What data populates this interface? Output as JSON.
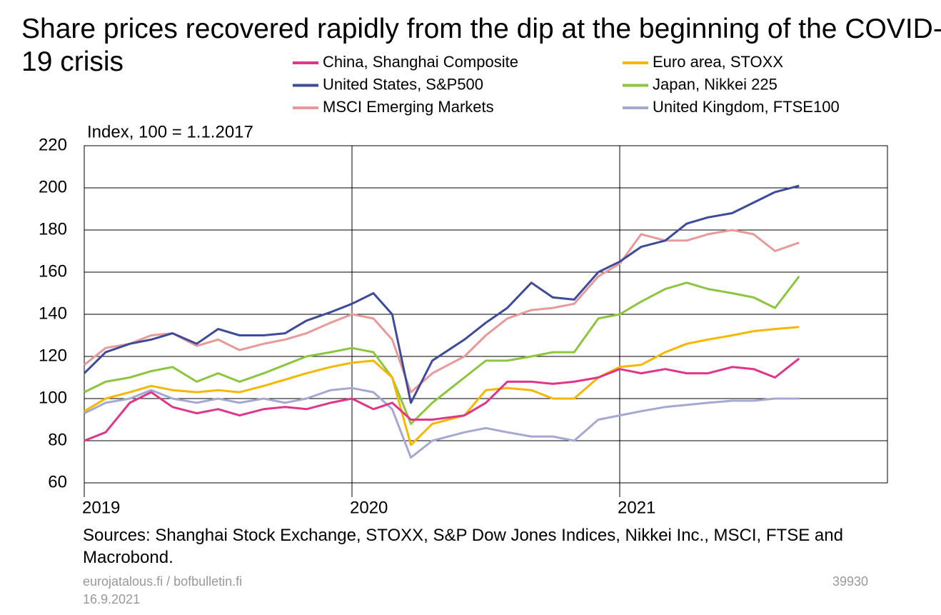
{
  "chart_data": {
    "type": "line",
    "title": "Share prices recovered rapidly from the dip at the beginning of the COVID-19 crisis",
    "y_label": "Index, 100 = 1.1.2017",
    "source": "Sources: Shanghai Stock Exchange, STOXX, S&P Dow Jones Indices, Nikkei Inc., MSCI, FTSE and Macrobond.",
    "footer_site": "eurojatalous.fi / bofbulletin.fi",
    "footer_date": "16.9.2021",
    "chart_id": "39930",
    "x": [
      2019.0,
      2019.08,
      2019.17,
      2019.25,
      2019.33,
      2019.42,
      2019.5,
      2019.58,
      2019.67,
      2019.75,
      2019.83,
      2019.92,
      2020.0,
      2020.08,
      2020.15,
      2020.22,
      2020.3,
      2020.42,
      2020.5,
      2020.58,
      2020.67,
      2020.75,
      2020.83,
      2020.92,
      2021.0,
      2021.08,
      2021.17,
      2021.25,
      2021.33,
      2021.42,
      2021.5,
      2021.58,
      2021.67
    ],
    "xlim": [
      2019,
      2022
    ],
    "xticks": [
      2019,
      2020,
      2021
    ],
    "ylim": [
      60,
      220
    ],
    "yticks": [
      60,
      80,
      100,
      120,
      140,
      160,
      180,
      200,
      220
    ],
    "grid": true,
    "series": [
      {
        "name": "China, Shanghai Composite",
        "color": "#e0368a",
        "values": [
          80,
          84,
          98,
          103,
          96,
          93,
          95,
          92,
          95,
          96,
          95,
          98,
          100,
          95,
          98,
          90,
          90,
          92,
          98,
          108,
          108,
          107,
          108,
          110,
          114,
          112,
          114,
          112,
          112,
          115,
          114,
          110,
          119
        ]
      },
      {
        "name": "Euro area, STOXX",
        "color": "#f5b800",
        "values": [
          94,
          100,
          103,
          106,
          104,
          103,
          104,
          103,
          106,
          109,
          112,
          115,
          117,
          118,
          110,
          78,
          88,
          92,
          104,
          105,
          104,
          100,
          100,
          110,
          115,
          116,
          122,
          126,
          128,
          130,
          132,
          133,
          134
        ]
      },
      {
        "name": "United States, S&P500",
        "color": "#3e4a9a",
        "values": [
          112,
          122,
          126,
          128,
          131,
          126,
          133,
          130,
          130,
          131,
          137,
          141,
          145,
          150,
          140,
          98,
          118,
          128,
          136,
          143,
          155,
          148,
          147,
          160,
          165,
          172,
          175,
          183,
          186,
          188,
          193,
          198,
          201
        ]
      },
      {
        "name": "Japan, Nikkei 225",
        "color": "#8cc63f",
        "values": [
          103,
          108,
          110,
          113,
          115,
          108,
          112,
          108,
          112,
          116,
          120,
          122,
          124,
          122,
          110,
          88,
          98,
          110,
          118,
          118,
          120,
          122,
          122,
          138,
          140,
          146,
          152,
          155,
          152,
          150,
          148,
          143,
          158
        ]
      },
      {
        "name": "MSCI Emerging Markets",
        "color": "#e89a9a",
        "values": [
          116,
          124,
          126,
          130,
          131,
          125,
          128,
          123,
          126,
          128,
          131,
          136,
          140,
          138,
          128,
          103,
          112,
          120,
          130,
          138,
          142,
          143,
          145,
          158,
          164,
          178,
          175,
          175,
          178,
          180,
          178,
          170,
          174
        ]
      },
      {
        "name": "United Kingdom, FTSE100",
        "color": "#a5a8d2",
        "values": [
          93,
          98,
          100,
          104,
          100,
          98,
          100,
          98,
          100,
          98,
          100,
          104,
          105,
          103,
          95,
          72,
          80,
          84,
          86,
          84,
          82,
          82,
          80,
          90,
          92,
          94,
          96,
          97,
          98,
          99,
          99,
          100,
          100
        ]
      }
    ]
  }
}
